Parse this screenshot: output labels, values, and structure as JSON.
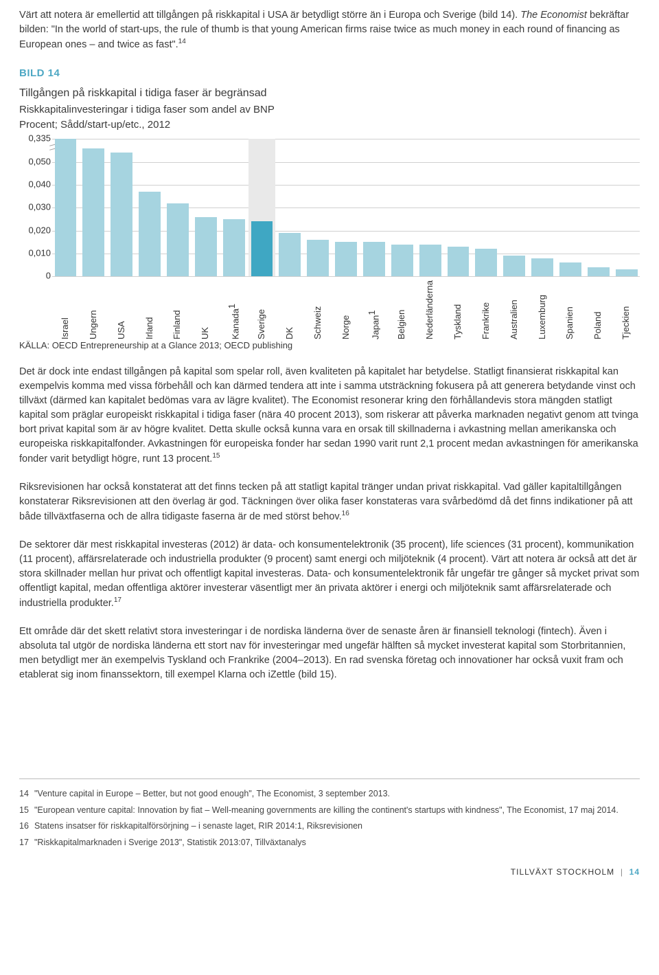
{
  "intro": {
    "text_before_italic": "Värt att notera är emellertid att tillgången på riskkapital i USA är betydligt större än i Europa och Sverige (bild 14). ",
    "italic": "The Economist",
    "text_after_italic": " bekräftar bilden: \"In the world of start-ups, the rule of thumb is that young American firms raise twice as much money in each round of financing as European ones – and twice as fast\".",
    "sup": "14"
  },
  "chart": {
    "label": "BILD 14",
    "title": "Tillgången på riskkapital i tidiga faser är begränsad",
    "subtitle1": "Riskkapitalinvesteringar i tidiga faser som andel av BNP",
    "subtitle2": "Procent; Sådd/start-up/etc., 2012",
    "source": "KÄLLA: OECD Entrepreneurship at a Glance 2013; OECD publishing",
    "type": "bar",
    "background_color": "#ffffff",
    "grid_color": "#d0d0d0",
    "bar_color": "#a6d4e0",
    "highlight_color": "#3fa7c3",
    "highlight_bg": "#e9e9e9",
    "axis_break_top": 0.335,
    "max_plot_value": 0.06,
    "yticks": [
      "0,335",
      "0,050",
      "0,040",
      "0,030",
      "0,020",
      "0,010",
      "0"
    ],
    "ytick_values": [
      0.06,
      0.05,
      0.04,
      0.03,
      0.02,
      0.01,
      0
    ],
    "bars": [
      {
        "label": "Israel",
        "value": 0.067,
        "sup": ""
      },
      {
        "label": "Ungern",
        "value": 0.056,
        "sup": ""
      },
      {
        "label": "USA",
        "value": 0.054,
        "sup": ""
      },
      {
        "label": "Irland",
        "value": 0.037,
        "sup": ""
      },
      {
        "label": "Finland",
        "value": 0.032,
        "sup": ""
      },
      {
        "label": "UK",
        "value": 0.026,
        "sup": ""
      },
      {
        "label": "Kanada",
        "value": 0.025,
        "sup": "1"
      },
      {
        "label": "Sverige",
        "value": 0.024,
        "sup": "",
        "highlight": true
      },
      {
        "label": "DK",
        "value": 0.019,
        "sup": ""
      },
      {
        "label": "Schweiz",
        "value": 0.016,
        "sup": ""
      },
      {
        "label": "Norge",
        "value": 0.015,
        "sup": ""
      },
      {
        "label": "Japan",
        "value": 0.015,
        "sup": "1"
      },
      {
        "label": "Belgien",
        "value": 0.014,
        "sup": ""
      },
      {
        "label": "Nederländerna",
        "value": 0.014,
        "sup": ""
      },
      {
        "label": "Tyskland",
        "value": 0.013,
        "sup": ""
      },
      {
        "label": "Frankrike",
        "value": 0.012,
        "sup": ""
      },
      {
        "label": "Australien",
        "value": 0.009,
        "sup": ""
      },
      {
        "label": "Luxemburg",
        "value": 0.008,
        "sup": ""
      },
      {
        "label": "Spanien",
        "value": 0.006,
        "sup": ""
      },
      {
        "label": "Poland",
        "value": 0.004,
        "sup": ""
      },
      {
        "label": "Tjeckien",
        "value": 0.003,
        "sup": ""
      }
    ]
  },
  "body": {
    "p1_a": "Det är dock inte endast tillgången på kapital som spelar roll, även kvaliteten på kapitalet har betydelse. Statligt finansierat riskkapital kan exempelvis komma med vissa förbehåll och kan därmed tendera att inte i samma utsträckning fokusera på att generera betydande vinst och tillväxt (därmed kan kapitalet bedömas vara av lägre kvalitet). The Economist resonerar kring den förhållandevis stora mängden statligt kapital som präglar europeiskt riskkapital i tidiga faser (nära 40 procent 2013), som riskerar att påverka marknaden negativt genom att tvinga bort privat kapital som är av högre kvalitet. Detta skulle också kunna vara en orsak till skillnaderna i avkastning mellan amerikanska och europeiska riskkapitalfonder. Avkastningen för europeiska fonder har sedan 1990 varit runt 2,1 procent medan avkastningen för amerikanska fonder varit betydligt högre, runt 13 procent.",
    "p1_sup": "15",
    "p2_a": "Riksrevisionen har också konstaterat att det finns tecken på att statligt kapital tränger undan privat riskkapital. Vad gäller kapitaltillgången konstaterar Riksrevisionen att den överlag är god. Täckningen över olika faser konstateras vara svårbedömd då det finns indikationer på att både tillväxtfaserna och de allra tidigaste faserna är de med störst behov.",
    "p2_sup": "16",
    "p3_a": "De sektorer där mest riskkapital investeras (2012) är data- och konsumentelektronik (35 procent), life sciences (31 procent), kommunikation (11 procent), affärsrelaterade och industriella produkter (9 procent) samt energi och miljöteknik (4 procent). Värt att notera är också att det är stora skillnader mellan hur privat och offentligt kapital investeras. Data- och konsumentelektronik får ungefär tre gånger så mycket privat som offentligt kapital, medan offentliga aktörer investerar väsentligt mer än privata aktörer i energi och miljöteknik samt affärsrelaterade och industriella produkter.",
    "p3_sup": "17",
    "p4": "Ett område där det skett relativt stora investeringar i de nordiska länderna över de senaste åren är finansiell teknologi (fintech). Även i absoluta tal utgör de nordiska länderna ett stort nav för investeringar med ungefär hälften så mycket investerat kapital som Storbritannien, men betydligt mer än exempelvis Tyskland och Frankrike (2004–2013). En rad svenska företag och innovationer har också vuxit fram och etablerat sig inom finanssektorn, till exempel Klarna och iZettle (bild 15)."
  },
  "footnotes": [
    {
      "n": "14",
      "t": "\"Venture capital in Europe – Better, but not good enough\", The Economist, 3 september 2013."
    },
    {
      "n": "15",
      "t": "\"European venture capital: Innovation by fiat – Well-meaning governments are killing the continent's startups with kindness\", The Economist, 17 maj 2014."
    },
    {
      "n": "16",
      "t": "Statens insatser för riskkapitalförsörjning – i senaste laget, RIR 2014:1, Riksrevisionen"
    },
    {
      "n": "17",
      "t": "\"Riskkapitalmarknaden i Sverige 2013\", Statistik 2013:07, Tillväxtanalys"
    }
  ],
  "footer": {
    "label": "TILLVÄXT STOCKHOLM",
    "sep": "|",
    "page": "14"
  }
}
